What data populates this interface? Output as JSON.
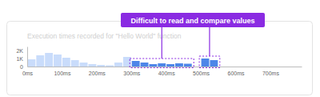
{
  "chart_data": {
    "type": "histogram",
    "title": "Execution times recorded for \"Hello World\" function",
    "annotation": "Difficult to read and compare values",
    "bins": [
      0,
      25,
      50,
      75,
      100,
      125,
      150,
      175,
      200,
      225,
      250,
      275,
      300,
      325,
      350,
      375,
      400,
      425,
      450,
      475,
      500,
      525,
      550,
      575
    ],
    "values": [
      900,
      1400,
      1700,
      1500,
      1100,
      800,
      500,
      300,
      200,
      150,
      500,
      1200,
      700,
      500,
      300,
      400,
      300,
      400,
      350,
      0,
      1000,
      800,
      0
    ],
    "colors": [
      "#c9dcfb",
      "#c9dcfb",
      "#c9dcfb",
      "#c9dcfb",
      "#c9dcfb",
      "#c9dcfb",
      "#c9dcfb",
      "#c9dcfb",
      "#c9dcfb",
      "#c9dcfb",
      "#c9dcfb",
      "#c9dcfb",
      "#4d86e8",
      "#4d86e8",
      "#4d86e8",
      "#4d86e8",
      "#4d86e8",
      "#4d86e8",
      "#4d86e8",
      "#c9dcfb",
      "#4d86e8",
      "#4d86e8",
      "#c9dcfb"
    ],
    "xlim": [
      0,
      790
    ],
    "xticks": [
      {
        "value": 0,
        "label": "0ms"
      },
      {
        "value": 100,
        "label": "100ms"
      },
      {
        "value": 200,
        "label": "200ms"
      },
      {
        "value": 300,
        "label": "300ms"
      },
      {
        "value": 400,
        "label": "400ms"
      },
      {
        "value": 500,
        "label": "500ms"
      },
      {
        "value": 600,
        "label": "600ms"
      },
      {
        "value": 700,
        "label": "700ms"
      }
    ],
    "ylim": [
      0,
      2500
    ],
    "yticks": [
      0,
      {
        "value": 1000,
        "label": "1K"
      },
      {
        "value": 2000,
        "label": "2K"
      }
    ],
    "grid": false
  }
}
